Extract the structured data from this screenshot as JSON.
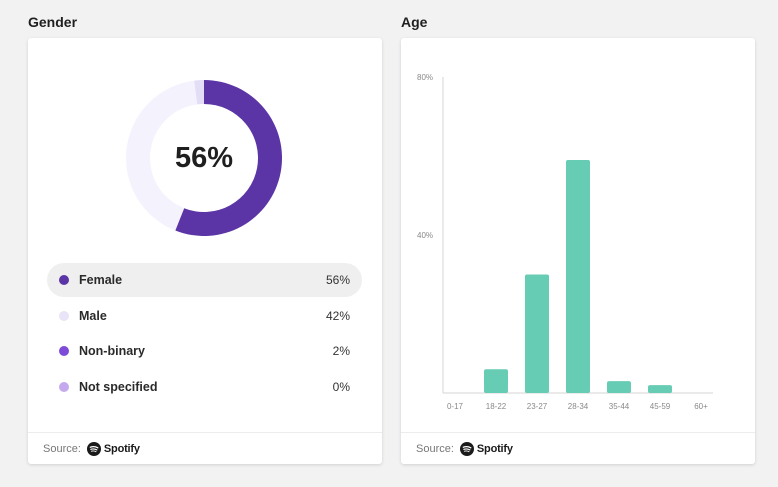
{
  "gender": {
    "title": "Gender",
    "center_value": "56%",
    "legend": [
      {
        "label": "Female",
        "value": "56%",
        "color": "#5b35a5"
      },
      {
        "label": "Male",
        "value": "42%",
        "color": "#e9e4f7"
      },
      {
        "label": "Non-binary",
        "value": "2%",
        "color": "#7e4ad8"
      },
      {
        "label": "Not specified",
        "value": "0%",
        "color": "#c5a9ee"
      }
    ],
    "source_label": "Source:",
    "source_name": "Spotify"
  },
  "age": {
    "title": "Age",
    "source_label": "Source:",
    "source_name": "Spotify"
  },
  "chart_data": [
    {
      "type": "pie",
      "title": "Gender",
      "categories": [
        "Female",
        "Male",
        "Non-binary",
        "Not specified"
      ],
      "values": [
        56,
        42,
        2,
        0
      ],
      "colors": [
        "#5b35a5",
        "#f4f2fd",
        "#e4ddf6",
        "#c5a9ee"
      ],
      "donut": true,
      "center_label": "56%"
    },
    {
      "type": "bar",
      "title": "Age",
      "categories": [
        "0-17",
        "18-22",
        "23-27",
        "28-34",
        "35-44",
        "45-59",
        "60+"
      ],
      "values": [
        0,
        6,
        30,
        59,
        3,
        2,
        0
      ],
      "ylim": [
        0,
        80
      ],
      "yticks": [
        "40%",
        "80%"
      ],
      "ytick_values": [
        40,
        80
      ],
      "color": "#66ccb3",
      "grid": false
    }
  ]
}
